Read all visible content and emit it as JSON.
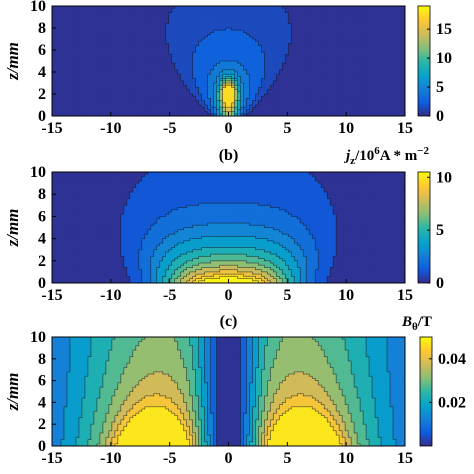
{
  "chart_data": [
    {
      "type": "heatmap",
      "panel_label": "",
      "quantity": "",
      "ylabel": "z/mm",
      "xlim": [
        -15,
        15
      ],
      "ylim": [
        0,
        10
      ],
      "xticks": [
        "-15",
        "-10",
        "-5",
        "0",
        "5",
        "10",
        "15"
      ],
      "yticks": [
        "0",
        "2",
        "4",
        "6",
        "8",
        "10"
      ],
      "colorbar": {
        "range": [
          0,
          19
        ],
        "ticks": [
          "0",
          "5",
          "10",
          "15"
        ],
        "title": ""
      },
      "contour_levels": [
        1,
        2,
        3.5,
        5,
        6.5,
        8,
        10,
        12,
        14,
        16
      ],
      "description_field": "sharp axial peak near x=0, z=2 (~18), broad low plume widening upward"
    },
    {
      "type": "heatmap",
      "panel_label": "(b)",
      "quantity": "jz/10^6 A*m^-2",
      "quantity_parts": {
        "j": "j",
        "sub": "z",
        "slash": "/10",
        "exp": "6",
        "unit": "A * m",
        "unit_exp": "−2"
      },
      "ylabel": "z/mm",
      "xlim": [
        -15,
        15
      ],
      "ylim": [
        0,
        10
      ],
      "xticks": [
        "-15",
        "-10",
        "-5",
        "0",
        "5",
        "10",
        "15"
      ],
      "yticks": [
        "0",
        "2",
        "4",
        "6",
        "8",
        "10"
      ],
      "colorbar": {
        "range": [
          0,
          10.5
        ],
        "ticks": [
          "0",
          "5",
          "10"
        ],
        "title": "jz/10^6 A*m^-2"
      },
      "contour_levels": [
        0.8,
        1.6,
        2.4,
        3.2,
        4.2,
        5.2,
        6.2,
        7.2,
        8.2,
        9.2,
        10
      ]
    },
    {
      "type": "heatmap",
      "panel_label": "(c)",
      "quantity": "Bθ/T",
      "quantity_parts": {
        "b": "B",
        "sub": "θ",
        "unit": "/T"
      },
      "ylabel": "z/mm",
      "xlim": [
        -15,
        15
      ],
      "ylim": [
        0,
        10
      ],
      "xticks": [
        "-15",
        "-10",
        "-5",
        "0",
        "5",
        "10",
        "15"
      ],
      "yticks": [
        "0",
        "2",
        "4",
        "6",
        "8",
        "10"
      ],
      "colorbar": {
        "range": [
          0,
          0.05
        ],
        "ticks": [
          "0.02",
          "0.04"
        ],
        "title": "Bθ/T"
      },
      "contour_levels": [
        0.005,
        0.01,
        0.015,
        0.02,
        0.025,
        0.03,
        0.035,
        0.04,
        0.045
      ]
    }
  ]
}
